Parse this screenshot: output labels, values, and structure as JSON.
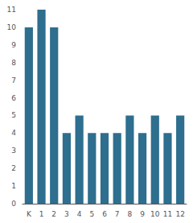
{
  "chart_data": {
    "type": "bar",
    "categories": [
      "K",
      "1",
      "2",
      "3",
      "4",
      "5",
      "6",
      "7",
      "8",
      "9",
      "10",
      "11",
      "12"
    ],
    "values": [
      10,
      11,
      10,
      4,
      5,
      4,
      4,
      4,
      5,
      4,
      5,
      4,
      5
    ],
    "color": "#2e6e8e",
    "ylim": [
      0,
      11
    ],
    "yticks": [
      0,
      1,
      2,
      3,
      4,
      5,
      6,
      7,
      8,
      9,
      10,
      11
    ],
    "grid": false
  }
}
